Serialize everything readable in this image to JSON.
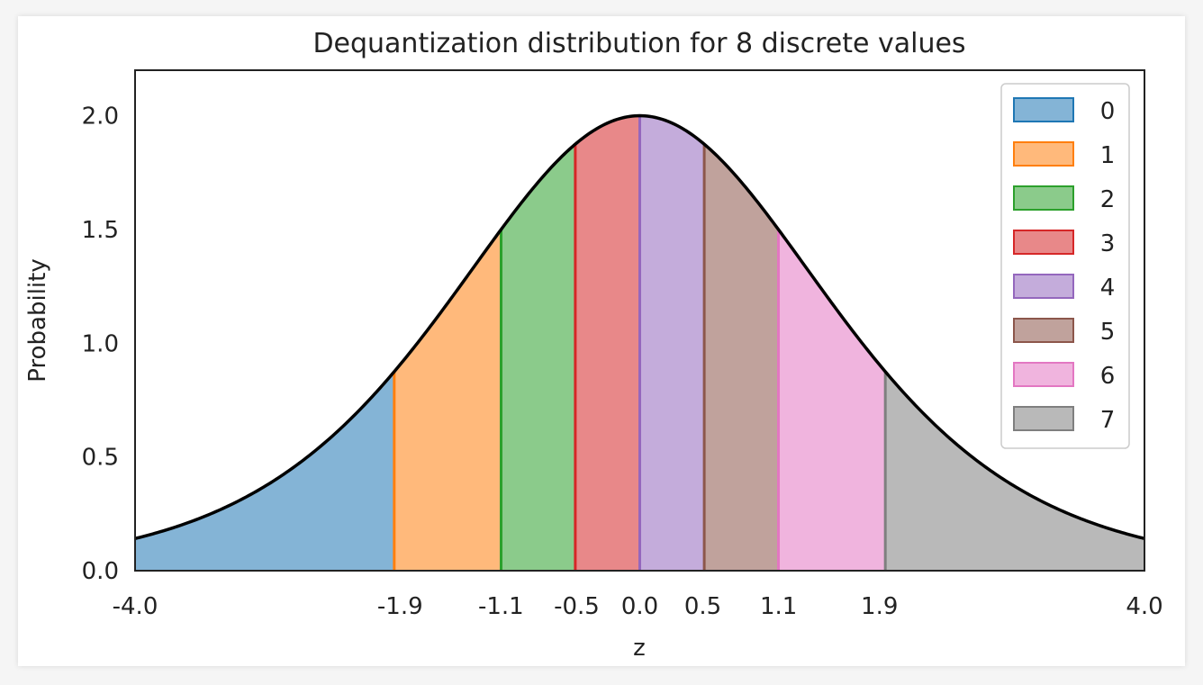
{
  "chart_data": {
    "type": "area",
    "title": "Dequantization distribution for 8 discrete values",
    "xlabel": "z",
    "ylabel": "Probability",
    "xlim": [
      -4.0,
      4.0
    ],
    "ylim": [
      0,
      2.2
    ],
    "xticks": [
      -4.0,
      -1.9,
      -1.1,
      -0.5,
      0.0,
      0.5,
      1.1,
      1.9,
      4.0
    ],
    "xtick_labels": [
      "-4.0",
      "-1.9",
      "-1.1",
      "-0.5",
      "0.0",
      "0.5",
      "1.1",
      "1.9",
      "4.0"
    ],
    "yticks": [
      0.0,
      0.5,
      1.0,
      1.5,
      2.0
    ],
    "ytick_labels": [
      "0.0",
      "0.5",
      "1.0",
      "1.5",
      "2.0"
    ],
    "grid": false,
    "legend_position": "top-right",
    "curve": "2 * sigmoid(z) * (1 - sigmoid(z)) * 4, peak 2.0 at z = 0",
    "boundaries": [
      -4.0,
      -1.946,
      -1.099,
      -0.511,
      0.0,
      0.511,
      1.099,
      1.946,
      4.0
    ],
    "series": [
      {
        "name": "0",
        "color": "#1f77b4",
        "range": [
          -4.0,
          -1.946
        ]
      },
      {
        "name": "1",
        "color": "#ff7f0e",
        "range": [
          -1.946,
          -1.099
        ]
      },
      {
        "name": "2",
        "color": "#2ca02c",
        "range": [
          -1.099,
          -0.511
        ]
      },
      {
        "name": "3",
        "color": "#d62728",
        "range": [
          -0.511,
          0.0
        ]
      },
      {
        "name": "4",
        "color": "#9467bd",
        "range": [
          0.0,
          0.511
        ]
      },
      {
        "name": "5",
        "color": "#8c564b",
        "range": [
          0.511,
          1.099
        ]
      },
      {
        "name": "6",
        "color": "#e377c2",
        "range": [
          1.099,
          1.946
        ]
      },
      {
        "name": "7",
        "color": "#7f7f7f",
        "range": [
          1.946,
          4.0
        ]
      }
    ]
  }
}
